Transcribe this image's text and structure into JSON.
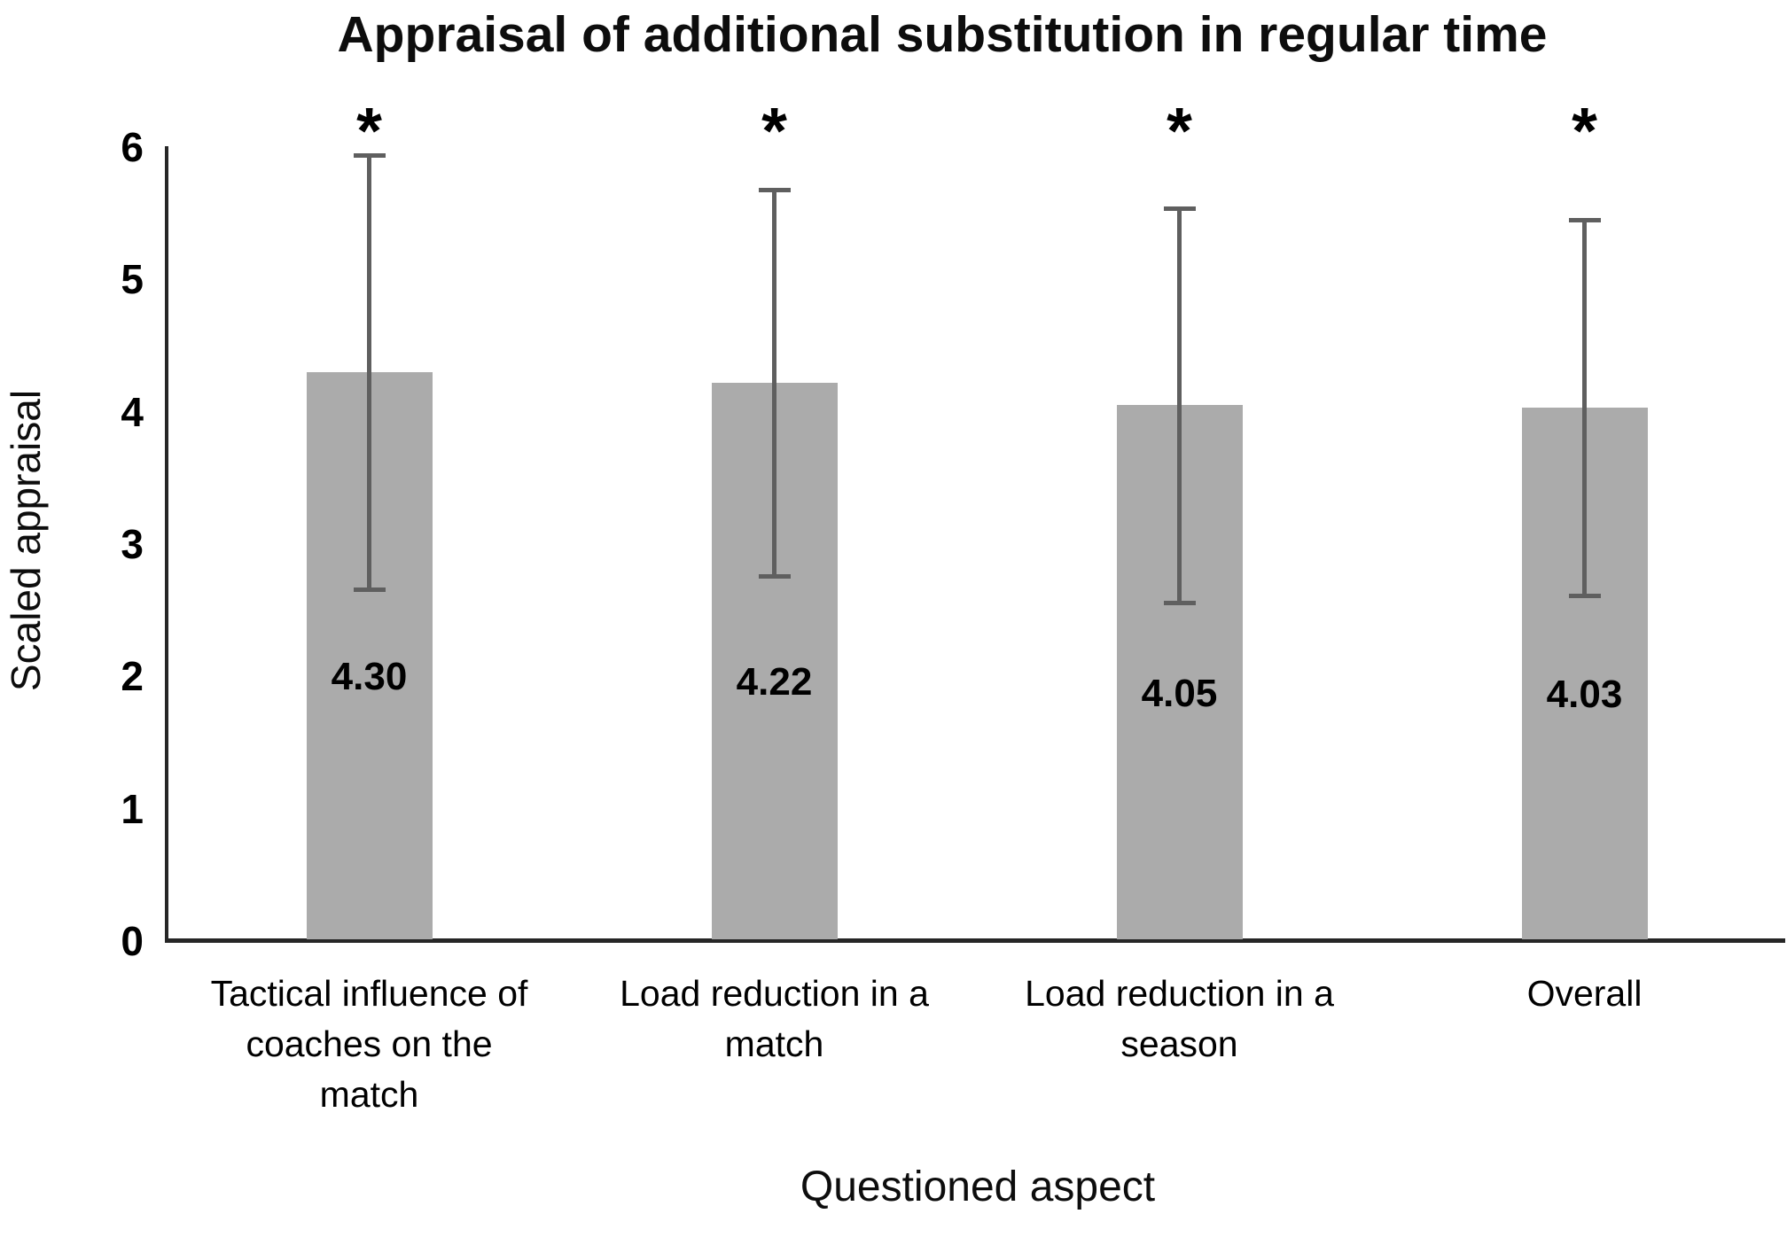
{
  "chart_data": {
    "type": "bar",
    "title": "Appraisal of additional substitution in regular time",
    "xlabel": "Questioned aspect",
    "ylabel": "Scaled appraisal",
    "ylim": [
      0,
      6
    ],
    "yticks": [
      0,
      1,
      2,
      3,
      4,
      5,
      6
    ],
    "grid": false,
    "legend": null,
    "categories": [
      "Tactical influence of coaches on the match",
      "Load reduction in a match",
      "Load reduction in a season",
      "Overall"
    ],
    "category_lines": [
      [
        "Tactical influence of",
        "coaches on the",
        "match"
      ],
      [
        "Load reduction in a",
        "match"
      ],
      [
        "Load reduction in a",
        "season"
      ],
      [
        "Overall"
      ]
    ],
    "values": [
      4.3,
      4.22,
      4.05,
      4.03
    ],
    "value_labels": [
      "4.30",
      "4.22",
      "4.05",
      "4.03"
    ],
    "error_plus": [
      1.64,
      1.46,
      1.49,
      1.42
    ],
    "error_minus": [
      1.64,
      1.46,
      1.49,
      1.42
    ],
    "significance_markers": [
      "*",
      "*",
      "*",
      "*"
    ],
    "colors": {
      "bar_fill": "#ababab",
      "error_bar": "#5f5f5f",
      "axis": "#262626",
      "text": "#000000",
      "background": "#ffffff"
    }
  }
}
